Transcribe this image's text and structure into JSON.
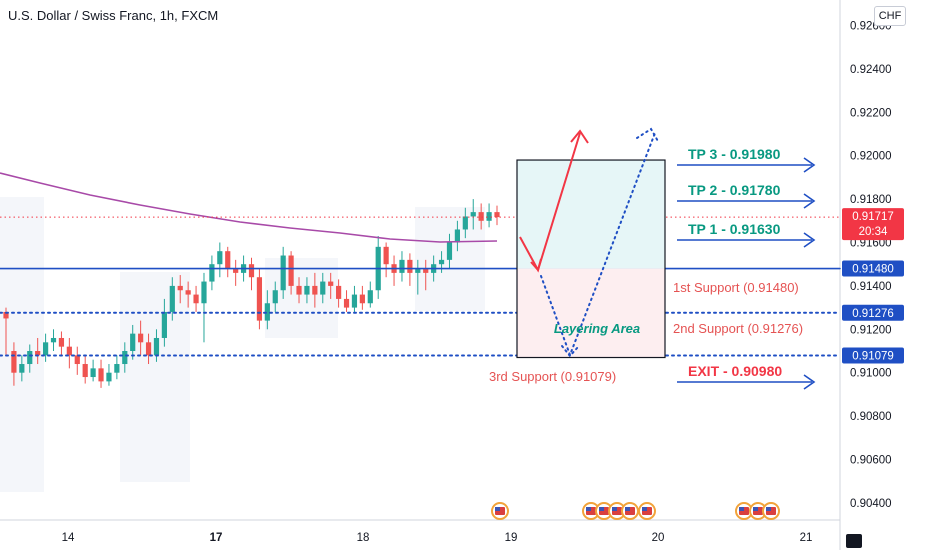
{
  "header": {
    "title": "U.S. Dollar / Swiss Franc, 1h, FXCM",
    "currency": "CHF"
  },
  "chart_data": {
    "type": "candlestick",
    "price_range": [
      0.9035,
      0.9268
    ],
    "price_ticks": [
      "0.92600",
      "0.92400",
      "0.92200",
      "0.92000",
      "0.91800",
      "0.91600",
      "0.91400",
      "0.91200",
      "0.91000",
      "0.90800",
      "0.90600",
      "0.90400"
    ],
    "date_ticks": [
      "14",
      "17",
      "18",
      "19",
      "20",
      "21"
    ],
    "current_price": {
      "value": "0.91717",
      "countdown": "20:34",
      "color": "#f23645"
    },
    "price_labels": [
      {
        "value": "0.91480",
        "style": "solid"
      },
      {
        "value": "0.91276",
        "style": "dotted"
      },
      {
        "value": "0.91079",
        "style": "dotted"
      }
    ],
    "targets": [
      {
        "label": "TP 3 - 0.91980",
        "color": "#089981"
      },
      {
        "label": "TP 2 - 0.91780",
        "color": "#089981"
      },
      {
        "label": "TP 1 - 0.91630",
        "color": "#089981"
      },
      {
        "label": "EXIT - 0.90980",
        "color": "#f23645"
      }
    ],
    "supports": [
      {
        "label": "1st Support (0.91480)"
      },
      {
        "label": "2nd Support (0.91276)"
      },
      {
        "label": "3rd Support (0.91079)"
      }
    ],
    "annotation": "Layering Area",
    "colors": {
      "up": "#26a69a",
      "down": "#ef5350",
      "ma": "#a84aa8",
      "blue": "#1f4fc4",
      "text_red": "#e55353",
      "grid": "#f0f3fa"
    }
  }
}
